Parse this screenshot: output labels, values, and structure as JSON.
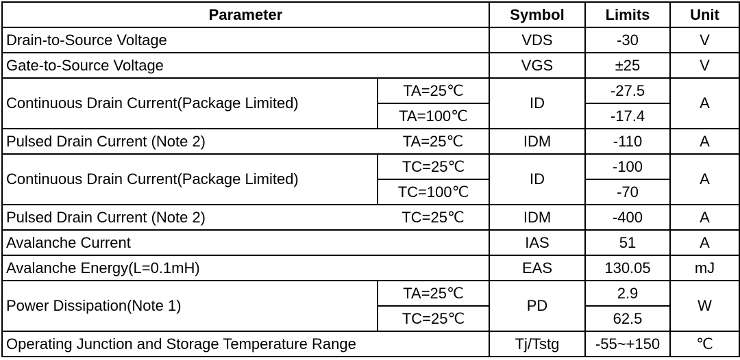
{
  "headers": {
    "parameter": "Parameter",
    "symbol": "Symbol",
    "limits": "Limits",
    "unit": "Unit"
  },
  "rows": [
    {
      "parameter": "Drain-to-Source Voltage",
      "symbol": "VDS",
      "limit": "-30",
      "unit": "V"
    },
    {
      "parameter": "Gate-to-Source Voltage",
      "symbol": "VGS",
      "limit": "±25",
      "unit": "V"
    },
    {
      "parameter": "Continuous Drain Current(Package Limited)",
      "conditions": [
        "TA=25℃",
        "TA=100℃"
      ],
      "symbol": "ID",
      "limits": [
        "-27.5",
        "-17.4"
      ],
      "unit": "A"
    },
    {
      "parameter": "Pulsed Drain Current (Note 2)",
      "condition": "TA=25℃",
      "symbol": "IDM",
      "limit": "-110",
      "unit": "A"
    },
    {
      "parameter": "Continuous Drain Current(Package Limited)",
      "conditions": [
        "TC=25℃",
        "TC=100℃"
      ],
      "symbol": "ID",
      "limits": [
        "-100",
        "-70"
      ],
      "unit": "A"
    },
    {
      "parameter": "Pulsed Drain Current (Note 2)",
      "condition": "TC=25℃",
      "symbol": "IDM",
      "limit": "-400",
      "unit": "A"
    },
    {
      "parameter": "Avalanche Current",
      "symbol": "IAS",
      "limit": "51",
      "unit": "A"
    },
    {
      "parameter": "Avalanche Energy(L=0.1mH)",
      "symbol": "EAS",
      "limit": "130.05",
      "unit": "mJ"
    },
    {
      "parameter": "Power Dissipation(Note 1)",
      "conditions": [
        "TA=25℃",
        "TC=25℃"
      ],
      "symbol": "PD",
      "limits": [
        "2.9",
        "62.5"
      ],
      "unit": "W"
    },
    {
      "parameter": "Operating Junction and Storage Temperature Range",
      "symbol": "Tj/Tstg",
      "limit": "-55~+150",
      "unit": "℃"
    }
  ]
}
